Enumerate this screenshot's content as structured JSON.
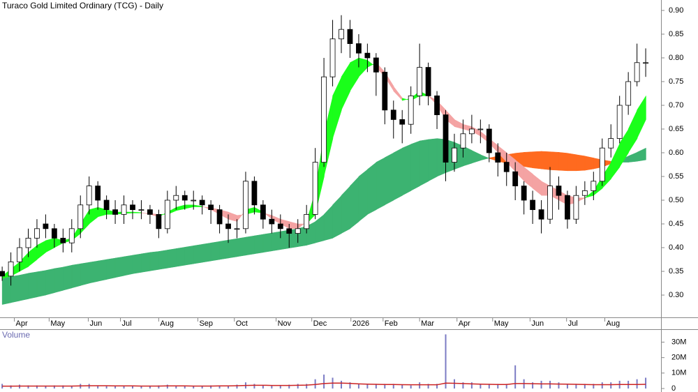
{
  "chart_data": [
    {
      "type": "candlestick",
      "title": "Turaco Gold Limited Ordinary (TCG) - Daily",
      "open": [
        0.35,
        0.34,
        0.37,
        0.4,
        0.42,
        0.45,
        0.44,
        0.42,
        0.41,
        0.44,
        0.49,
        0.53,
        0.5,
        0.48,
        0.47,
        0.49,
        0.48,
        0.48,
        0.47,
        0.44,
        0.5,
        0.51,
        0.5,
        0.5,
        0.49,
        0.48,
        0.45,
        0.44,
        0.44,
        0.54,
        0.49,
        0.46,
        0.45,
        0.44,
        0.43,
        0.44,
        0.47,
        0.58,
        0.76,
        0.84,
        0.86,
        0.83,
        0.81,
        0.8,
        0.77,
        0.69,
        0.67,
        0.66,
        0.72,
        0.78,
        0.72,
        0.68,
        0.58,
        0.61,
        0.64,
        0.65,
        0.65,
        0.6,
        0.58,
        0.56,
        0.53,
        0.5,
        0.48,
        0.46,
        0.53,
        0.51,
        0.46,
        0.51,
        0.52,
        0.54,
        0.61,
        0.63,
        0.7,
        0.75,
        0.79
      ],
      "high": [
        0.36,
        0.39,
        0.42,
        0.44,
        0.46,
        0.47,
        0.45,
        0.44,
        0.46,
        0.51,
        0.55,
        0.54,
        0.51,
        0.5,
        0.51,
        0.5,
        0.5,
        0.49,
        0.48,
        0.52,
        0.53,
        0.52,
        0.52,
        0.51,
        0.5,
        0.49,
        0.47,
        0.46,
        0.56,
        0.55,
        0.5,
        0.48,
        0.47,
        0.45,
        0.46,
        0.49,
        0.61,
        0.8,
        0.88,
        0.89,
        0.88,
        0.85,
        0.83,
        0.81,
        0.78,
        0.71,
        0.69,
        0.74,
        0.83,
        0.79,
        0.73,
        0.69,
        0.64,
        0.67,
        0.68,
        0.67,
        0.66,
        0.62,
        0.6,
        0.58,
        0.54,
        0.52,
        0.5,
        0.57,
        0.55,
        0.52,
        0.53,
        0.54,
        0.56,
        0.63,
        0.66,
        0.72,
        0.77,
        0.83,
        0.82
      ],
      "low": [
        0.33,
        0.32,
        0.35,
        0.38,
        0.4,
        0.42,
        0.4,
        0.39,
        0.39,
        0.42,
        0.47,
        0.48,
        0.46,
        0.45,
        0.45,
        0.46,
        0.46,
        0.45,
        0.42,
        0.43,
        0.48,
        0.48,
        0.48,
        0.47,
        0.45,
        0.43,
        0.41,
        0.42,
        0.43,
        0.47,
        0.44,
        0.43,
        0.42,
        0.4,
        0.41,
        0.43,
        0.46,
        0.57,
        0.74,
        0.81,
        0.8,
        0.78,
        0.77,
        0.72,
        0.66,
        0.63,
        0.62,
        0.64,
        0.7,
        0.7,
        0.65,
        0.54,
        0.56,
        0.59,
        0.62,
        0.62,
        0.58,
        0.55,
        0.53,
        0.5,
        0.47,
        0.45,
        0.43,
        0.45,
        0.48,
        0.44,
        0.45,
        0.49,
        0.5,
        0.53,
        0.59,
        0.62,
        0.68,
        0.74,
        0.76
      ],
      "close": [
        0.34,
        0.37,
        0.4,
        0.42,
        0.44,
        0.44,
        0.42,
        0.41,
        0.44,
        0.49,
        0.53,
        0.5,
        0.48,
        0.47,
        0.49,
        0.48,
        0.48,
        0.47,
        0.44,
        0.5,
        0.51,
        0.5,
        0.5,
        0.49,
        0.48,
        0.45,
        0.44,
        0.44,
        0.54,
        0.49,
        0.46,
        0.45,
        0.44,
        0.43,
        0.44,
        0.47,
        0.58,
        0.76,
        0.84,
        0.86,
        0.83,
        0.81,
        0.8,
        0.77,
        0.69,
        0.67,
        0.66,
        0.72,
        0.78,
        0.72,
        0.68,
        0.58,
        0.61,
        0.64,
        0.65,
        0.65,
        0.6,
        0.58,
        0.56,
        0.53,
        0.5,
        0.48,
        0.46,
        0.53,
        0.51,
        0.46,
        0.51,
        0.52,
        0.54,
        0.61,
        0.63,
        0.7,
        0.75,
        0.79,
        0.79
      ],
      "up_color": "#ffffff",
      "down_color": "#000000",
      "bands": [
        {
          "fast": [
            0.335,
            0.339,
            0.342,
            0.346,
            0.349,
            0.352,
            0.356,
            0.359,
            0.363,
            0.366,
            0.369,
            0.372,
            0.375,
            0.378,
            0.381,
            0.384,
            0.387,
            0.39,
            0.392,
            0.395,
            0.398,
            0.401,
            0.404,
            0.407,
            0.41,
            0.413,
            0.416,
            0.419,
            0.422,
            0.425,
            0.428,
            0.431,
            0.434,
            0.437,
            0.44,
            0.445,
            0.455,
            0.47,
            0.49,
            0.51,
            0.53,
            0.55,
            0.565,
            0.58,
            0.59,
            0.6,
            0.61,
            0.618,
            0.625,
            0.628,
            0.63,
            0.628,
            0.622,
            0.614,
            0.605,
            0.596,
            0.588,
            0.582,
            0.578,
            0.574,
            0.571,
            0.568,
            0.566,
            0.564,
            0.563,
            0.562,
            0.562,
            0.563,
            0.566,
            0.57,
            0.577,
            0.585,
            0.593,
            0.601,
            0.61
          ],
          "slow": [
            0.28,
            0.284,
            0.288,
            0.292,
            0.296,
            0.3,
            0.305,
            0.31,
            0.315,
            0.32,
            0.325,
            0.329,
            0.333,
            0.337,
            0.341,
            0.345,
            0.348,
            0.351,
            0.354,
            0.357,
            0.36,
            0.363,
            0.366,
            0.369,
            0.372,
            0.375,
            0.378,
            0.381,
            0.384,
            0.387,
            0.39,
            0.393,
            0.396,
            0.399,
            0.402,
            0.405,
            0.41,
            0.415,
            0.42,
            0.43,
            0.44,
            0.455,
            0.47,
            0.48,
            0.49,
            0.5,
            0.51,
            0.52,
            0.53,
            0.54,
            0.55,
            0.558,
            0.565,
            0.572,
            0.578,
            0.584,
            0.589,
            0.593,
            0.596,
            0.599,
            0.601,
            0.602,
            0.603,
            0.602,
            0.601,
            0.599,
            0.596,
            0.593,
            0.589,
            0.585,
            0.582,
            0.58,
            0.58,
            0.582,
            0.585
          ],
          "up_color": "#3cb371",
          "down_color": "#ff6a1f"
        },
        {
          "fast": [
            0.34,
            0.355,
            0.37,
            0.39,
            0.405,
            0.415,
            0.42,
            0.415,
            0.42,
            0.45,
            0.48,
            0.485,
            0.48,
            0.475,
            0.475,
            0.475,
            0.474,
            0.47,
            0.465,
            0.475,
            0.485,
            0.49,
            0.49,
            0.487,
            0.48,
            0.47,
            0.46,
            0.455,
            0.48,
            0.485,
            0.475,
            0.46,
            0.45,
            0.44,
            0.44,
            0.455,
            0.52,
            0.64,
            0.72,
            0.76,
            0.79,
            0.8,
            0.795,
            0.78,
            0.76,
            0.73,
            0.71,
            0.715,
            0.73,
            0.72,
            0.7,
            0.67,
            0.655,
            0.65,
            0.645,
            0.635,
            0.62,
            0.6,
            0.58,
            0.56,
            0.54,
            0.525,
            0.51,
            0.51,
            0.5,
            0.49,
            0.495,
            0.505,
            0.52,
            0.55,
            0.58,
            0.62,
            0.65,
            0.69,
            0.72
          ],
          "slow": [
            0.335,
            0.34,
            0.35,
            0.36,
            0.375,
            0.39,
            0.4,
            0.41,
            0.415,
            0.43,
            0.45,
            0.465,
            0.47,
            0.47,
            0.472,
            0.473,
            0.473,
            0.472,
            0.47,
            0.47,
            0.478,
            0.482,
            0.486,
            0.486,
            0.484,
            0.48,
            0.475,
            0.468,
            0.47,
            0.475,
            0.473,
            0.468,
            0.46,
            0.455,
            0.45,
            0.45,
            0.47,
            0.55,
            0.63,
            0.69,
            0.73,
            0.76,
            0.78,
            0.79,
            0.77,
            0.74,
            0.715,
            0.71,
            0.72,
            0.72,
            0.71,
            0.69,
            0.67,
            0.66,
            0.655,
            0.645,
            0.63,
            0.615,
            0.6,
            0.585,
            0.57,
            0.555,
            0.54,
            0.53,
            0.52,
            0.51,
            0.505,
            0.505,
            0.51,
            0.525,
            0.545,
            0.57,
            0.6,
            0.63,
            0.67
          ],
          "up_color": "#1aff1a",
          "down_color": "#f4a3a3"
        }
      ],
      "xlim": [
        -0.25,
        75.6
      ],
      "xticks": [
        {
          "value": 1.4,
          "label": "Apr"
        },
        {
          "value": 5.4,
          "label": "May"
        },
        {
          "value": 9.9,
          "label": "Jun"
        },
        {
          "value": 13.6,
          "label": "Jul"
        },
        {
          "value": 18.0,
          "label": "Aug"
        },
        {
          "value": 22.5,
          "label": "Sep"
        },
        {
          "value": 26.7,
          "label": "Oct"
        },
        {
          "value": 31.5,
          "label": "Nov"
        },
        {
          "value": 35.6,
          "label": "Dec"
        },
        {
          "value": 40.1,
          "label": "2026"
        },
        {
          "value": 43.8,
          "label": "Feb"
        },
        {
          "value": 48.0,
          "label": "Mar"
        },
        {
          "value": 52.3,
          "label": "Apr"
        },
        {
          "value": 56.4,
          "label": "May"
        },
        {
          "value": 60.7,
          "label": "Jun"
        },
        {
          "value": 64.9,
          "label": "Jul"
        },
        {
          "value": 69.3,
          "label": "Aug"
        }
      ],
      "ylim": [
        0.253,
        0.922
      ],
      "yticks": [
        {
          "value": 0.3,
          "label": "0.30"
        },
        0.35,
        {
          "value": 0.4,
          "label": "0.40"
        },
        0.45,
        {
          "value": 0.5,
          "label": "0.50"
        },
        0.55,
        {
          "value": 0.6,
          "label": "0.60"
        },
        0.65,
        {
          "value": 0.7,
          "label": "0.70"
        },
        0.75,
        {
          "value": 0.8,
          "label": "0.80"
        },
        0.85,
        {
          "value": 0.9,
          "label": "0.90"
        }
      ]
    },
    {
      "type": "bar",
      "title": "Volume",
      "color": "#7b7bc4",
      "values": [
        3,
        2,
        2.5,
        2,
        2,
        1.5,
        2,
        2,
        1.5,
        3,
        3,
        2,
        1.5,
        1.5,
        2,
        1.5,
        1.5,
        1.5,
        2,
        2.5,
        2,
        1.5,
        1.5,
        1.5,
        2,
        2,
        2,
        2.5,
        4,
        3,
        2,
        2,
        2,
        2.5,
        3,
        3,
        6,
        9,
        7,
        5,
        4,
        3,
        3,
        3,
        3,
        3,
        2.5,
        2,
        4,
        3,
        3,
        35,
        6,
        4,
        4,
        3,
        3,
        3,
        3,
        15,
        6,
        4,
        5,
        5,
        4,
        3,
        3,
        3,
        3,
        4,
        4,
        5,
        5,
        6,
        7
      ],
      "average": [
        1.5,
        1.5,
        1.6,
        1.6,
        1.6,
        1.6,
        1.6,
        1.6,
        1.6,
        1.7,
        1.8,
        1.8,
        1.8,
        1.7,
        1.7,
        1.7,
        1.6,
        1.6,
        1.6,
        1.7,
        1.7,
        1.7,
        1.6,
        1.6,
        1.6,
        1.7,
        1.7,
        1.8,
        2.0,
        2.1,
        2.1,
        2.0,
        2.0,
        2.0,
        2.1,
        2.2,
        2.6,
        3.2,
        3.5,
        3.5,
        3.3,
        3.0,
        2.8,
        2.7,
        2.6,
        2.6,
        2.5,
        2.4,
        2.4,
        2.4,
        2.4,
        3.5,
        3.4,
        3.2,
        3.0,
        2.8,
        2.7,
        2.6,
        2.6,
        3.2,
        3.2,
        3.1,
        3.0,
        3.0,
        2.9,
        2.8,
        2.7,
        2.6,
        2.5,
        2.5,
        2.5,
        2.6,
        2.6,
        2.6,
        2.7
      ],
      "average_color": "#cc2222",
      "ylim": [
        0,
        37
      ],
      "yticks": [
        0,
        {
          "value": 10,
          "label": "10M"
        },
        {
          "value": 20,
          "label": "20M"
        },
        {
          "value": 30,
          "label": "30M"
        }
      ]
    }
  ]
}
